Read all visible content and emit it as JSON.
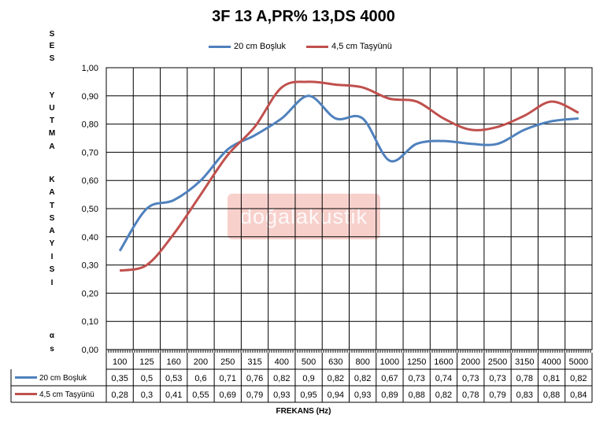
{
  "chart_data": {
    "type": "line",
    "title": "3F 13 A,PR% 13,DS 4000",
    "ylabel_letters": [
      "S",
      "E",
      "S",
      "Y",
      "U",
      "T",
      "M",
      "A",
      "K",
      "A",
      "T",
      "S",
      "A",
      "Y",
      "I",
      "S",
      "I",
      "α",
      "s"
    ],
    "xlabel": "FREKANS (Hz)",
    "categories": [
      "100",
      "125",
      "160",
      "200",
      "250",
      "315",
      "400",
      "500",
      "630",
      "800",
      "1000",
      "1250",
      "1600",
      "2000",
      "2500",
      "3150",
      "4000",
      "5000"
    ],
    "ylim": [
      0,
      1
    ],
    "yticks": [
      "0,00",
      "0,10",
      "0,20",
      "0,30",
      "0,40",
      "0,50",
      "0,60",
      "0,70",
      "0,80",
      "0,90",
      "1,00"
    ],
    "grid": true,
    "legend_position": "top",
    "series": [
      {
        "name": "20 cm Boşluk",
        "color": "#4f81bd",
        "values": [
          0.35,
          0.5,
          0.53,
          0.6,
          0.71,
          0.76,
          0.82,
          0.9,
          0.82,
          0.82,
          0.67,
          0.73,
          0.74,
          0.73,
          0.73,
          0.78,
          0.81,
          0.82
        ],
        "labels": [
          "0,35",
          "0,5",
          "0,53",
          "0,6",
          "0,71",
          "0,76",
          "0,82",
          "0,9",
          "0,82",
          "0,82",
          "0,67",
          "0,73",
          "0,74",
          "0,73",
          "0,73",
          "0,78",
          "0,81",
          "0,82"
        ]
      },
      {
        "name": "4,5 cm Taşyünü",
        "color": "#c0504d",
        "values": [
          0.28,
          0.3,
          0.41,
          0.55,
          0.69,
          0.79,
          0.93,
          0.95,
          0.94,
          0.93,
          0.89,
          0.88,
          0.82,
          0.78,
          0.79,
          0.83,
          0.88,
          0.84
        ],
        "labels": [
          "0,28",
          "0,3",
          "0,41",
          "0,55",
          "0,69",
          "0,79",
          "0,93",
          "0,95",
          "0,94",
          "0,93",
          "0,89",
          "0,88",
          "0,82",
          "0,78",
          "0,79",
          "0,83",
          "0,88",
          "0,84"
        ]
      }
    ]
  },
  "watermark": "doğalakustik"
}
